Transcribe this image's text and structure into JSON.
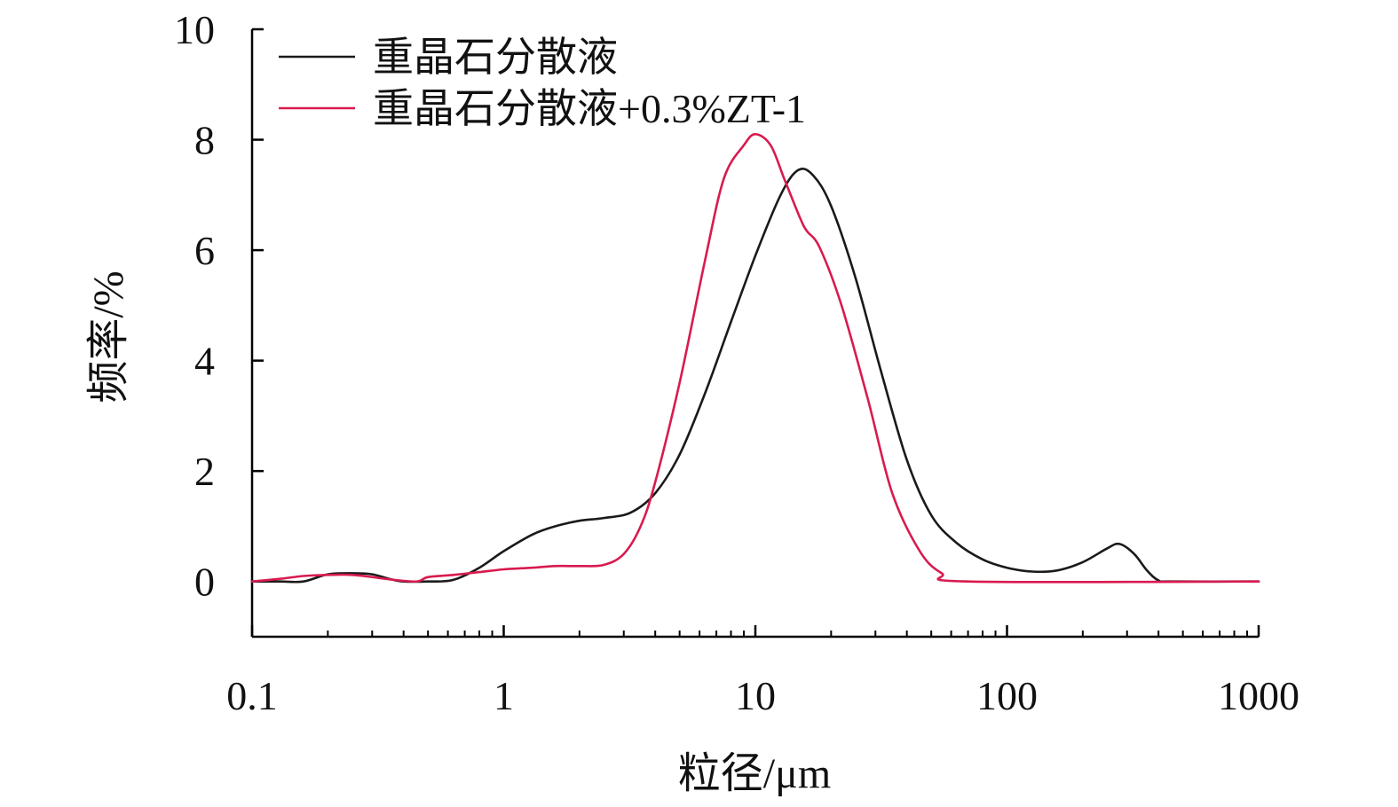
{
  "chart_data": {
    "type": "line",
    "xlabel": "粒径/μm",
    "ylabel": "频率/%",
    "xscale": "log",
    "xlim": [
      0.1,
      1000
    ],
    "ylim": [
      -1,
      10
    ],
    "x_ticks": [
      {
        "value": 0.1,
        "label": "0.1"
      },
      {
        "value": 1,
        "label": "1"
      },
      {
        "value": 10,
        "label": "10"
      },
      {
        "value": 100,
        "label": "100"
      },
      {
        "value": 1000,
        "label": "1000"
      }
    ],
    "y_ticks": [
      {
        "value": 0,
        "label": "0"
      },
      {
        "value": 2,
        "label": "2"
      },
      {
        "value": 4,
        "label": "4"
      },
      {
        "value": 6,
        "label": "6"
      },
      {
        "value": 8,
        "label": "8"
      },
      {
        "value": 10,
        "label": "10"
      }
    ],
    "grid": false,
    "legend": "top-left",
    "series": [
      {
        "name": "重晶石分散液",
        "color": "#1a1a1a",
        "points": [
          [
            0.1,
            0.0
          ],
          [
            0.13,
            0.0
          ],
          [
            0.16,
            0.0
          ],
          [
            0.2,
            0.13
          ],
          [
            0.25,
            0.15
          ],
          [
            0.3,
            0.13
          ],
          [
            0.35,
            0.05
          ],
          [
            0.4,
            0.0
          ],
          [
            0.5,
            0.0
          ],
          [
            0.63,
            0.03
          ],
          [
            0.8,
            0.25
          ],
          [
            1.0,
            0.55
          ],
          [
            1.3,
            0.85
          ],
          [
            1.6,
            1.0
          ],
          [
            2.0,
            1.1
          ],
          [
            2.5,
            1.15
          ],
          [
            3.2,
            1.25
          ],
          [
            4.0,
            1.6
          ],
          [
            5.0,
            2.3
          ],
          [
            6.3,
            3.4
          ],
          [
            8.0,
            4.7
          ],
          [
            10.0,
            5.9
          ],
          [
            12.6,
            7.0
          ],
          [
            14.8,
            7.45
          ],
          [
            17.0,
            7.35
          ],
          [
            20.0,
            6.8
          ],
          [
            25.0,
            5.5
          ],
          [
            31.6,
            3.8
          ],
          [
            40.0,
            2.2
          ],
          [
            50.0,
            1.2
          ],
          [
            63.0,
            0.7
          ],
          [
            80.0,
            0.4
          ],
          [
            100.0,
            0.25
          ],
          [
            126.0,
            0.18
          ],
          [
            158.0,
            0.2
          ],
          [
            200.0,
            0.35
          ],
          [
            250.0,
            0.6
          ],
          [
            280.0,
            0.68
          ],
          [
            320.0,
            0.5
          ],
          [
            360.0,
            0.2
          ],
          [
            400.0,
            0.02
          ],
          [
            450.0,
            0.0
          ],
          [
            1000.0,
            0.0
          ]
        ]
      },
      {
        "name": "重晶石分散液+0.3%ZT-1",
        "color": "#d81b4f",
        "points": [
          [
            0.1,
            0.0
          ],
          [
            0.13,
            0.05
          ],
          [
            0.16,
            0.1
          ],
          [
            0.2,
            0.12
          ],
          [
            0.25,
            0.12
          ],
          [
            0.3,
            0.08
          ],
          [
            0.35,
            0.04
          ],
          [
            0.45,
            0.0
          ],
          [
            0.5,
            0.08
          ],
          [
            0.63,
            0.12
          ],
          [
            0.8,
            0.17
          ],
          [
            1.0,
            0.22
          ],
          [
            1.3,
            0.25
          ],
          [
            1.6,
            0.28
          ],
          [
            2.0,
            0.28
          ],
          [
            2.5,
            0.3
          ],
          [
            3.0,
            0.5
          ],
          [
            3.5,
            1.0
          ],
          [
            4.0,
            1.8
          ],
          [
            5.0,
            3.6
          ],
          [
            6.3,
            5.8
          ],
          [
            7.5,
            7.3
          ],
          [
            9.0,
            7.9
          ],
          [
            10.0,
            8.1
          ],
          [
            11.5,
            7.9
          ],
          [
            13.0,
            7.3
          ],
          [
            15.0,
            6.6
          ],
          [
            16.0,
            6.35
          ],
          [
            18.0,
            6.05
          ],
          [
            22.0,
            5.0
          ],
          [
            28.0,
            3.3
          ],
          [
            35.0,
            1.6
          ],
          [
            45.0,
            0.55
          ],
          [
            55.0,
            0.15
          ],
          [
            70.0,
            0.0
          ],
          [
            1000.0,
            0.0
          ]
        ]
      }
    ]
  }
}
